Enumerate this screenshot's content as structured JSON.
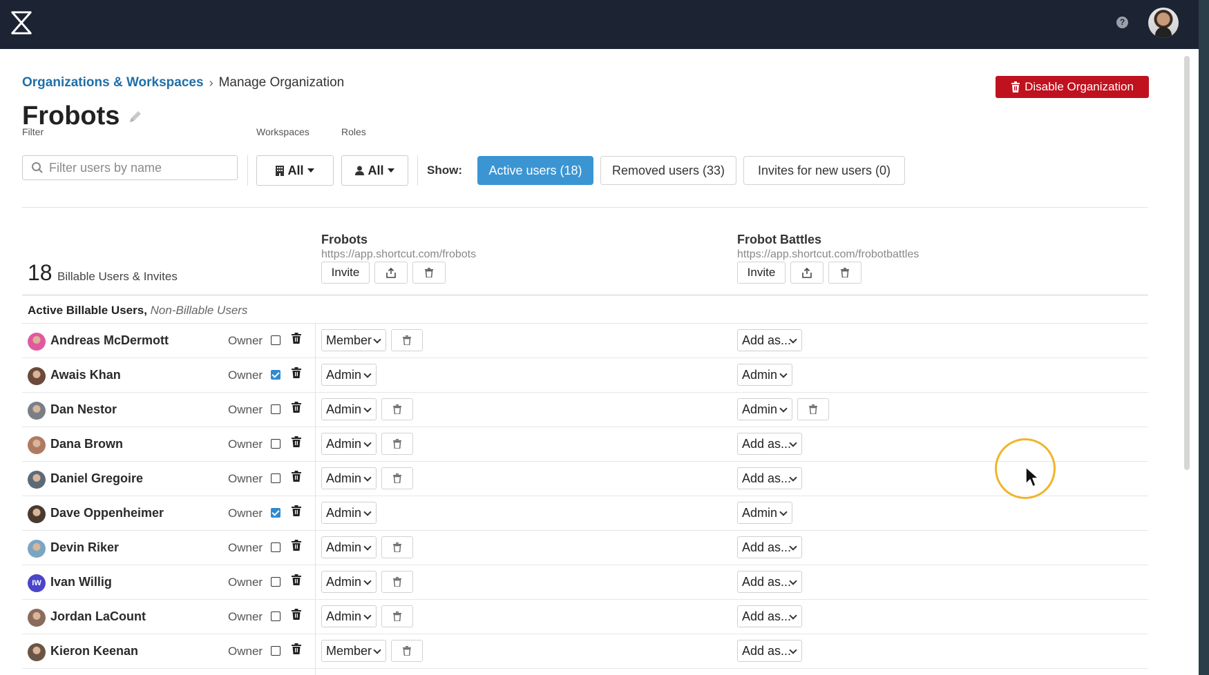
{
  "header": {
    "logo_icon": "shortcut-logo-icon",
    "help_icon": "help-icon"
  },
  "breadcrumb": {
    "link": "Organizations & Workspaces",
    "separator": "›",
    "current": "Manage Organization"
  },
  "actions": {
    "disable_label": "Disable Organization",
    "disable_color": "#c0111e"
  },
  "org": {
    "name": "Frobots"
  },
  "filters": {
    "filter_label": "Filter",
    "filter_placeholder": "Filter users by name",
    "workspaces_label": "Workspaces",
    "workspaces_value": "All",
    "roles_label": "Roles",
    "roles_value": "All",
    "show_label": "Show:",
    "tabs": [
      "Active users (18)",
      "Removed users (33)",
      "Invites for new users (0)"
    ],
    "active_tab_color": "#3b95d3"
  },
  "summary": {
    "count": "18",
    "label": "Billable Users & Invites"
  },
  "workspaces": [
    {
      "name": "Frobots",
      "url": "https://app.shortcut.com/frobots",
      "invite_label": "Invite"
    },
    {
      "name": "Frobot Battles",
      "url": "https://app.shortcut.com/frobotbattles",
      "invite_label": "Invite"
    }
  ],
  "section": {
    "title": "Active Billable Users,",
    "subtitle": "Non-Billable Users"
  },
  "owner_label": "Owner",
  "users": [
    {
      "name": "Andreas McDermott",
      "owner": false,
      "ws1": "Member",
      "ws2": "Add as..."
    },
    {
      "name": "Awais Khan",
      "owner": true,
      "ws1": "Admin",
      "ws2": "Admin"
    },
    {
      "name": "Dan Nestor",
      "owner": false,
      "ws1": "Admin",
      "ws2": "Admin"
    },
    {
      "name": "Dana Brown",
      "owner": false,
      "ws1": "Admin",
      "ws2": "Add as..."
    },
    {
      "name": "Daniel Gregoire",
      "owner": false,
      "ws1": "Admin",
      "ws2": "Add as..."
    },
    {
      "name": "Dave Oppenheimer",
      "owner": true,
      "ws1": "Admin",
      "ws2": "Admin"
    },
    {
      "name": "Devin Riker",
      "owner": false,
      "ws1": "Admin",
      "ws2": "Add as..."
    },
    {
      "name": "Ivan Willig",
      "owner": false,
      "ws1": "Admin",
      "ws2": "Add as...",
      "initials": "IW"
    },
    {
      "name": "Jordan LaCount",
      "owner": false,
      "ws1": "Admin",
      "ws2": "Add as..."
    },
    {
      "name": "Kieron Keenan",
      "owner": false,
      "ws1": "Member",
      "ws2": "Add as..."
    }
  ]
}
